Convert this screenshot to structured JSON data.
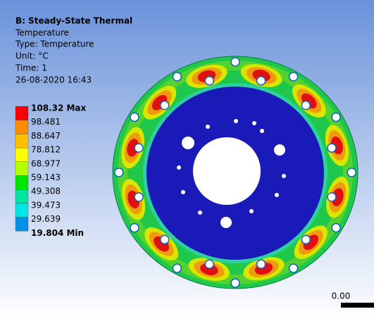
{
  "header": {
    "title": "B: Steady-State Thermal",
    "lines": [
      "Temperature",
      "Type: Temperature",
      "Unit: °C",
      "Time: 1",
      "26-08-2020 16:43"
    ]
  },
  "legend": {
    "labels": [
      "108.32 Max",
      "98.481",
      "88.647",
      "78.812",
      "68.977",
      "59.143",
      "49.308",
      "39.473",
      "29.639",
      "19.804 Min"
    ],
    "colors": [
      "#ff0000",
      "#ff8c00",
      "#ffbe00",
      "#ffff00",
      "#b4ff00",
      "#00e600",
      "#00e6a0",
      "#00e6e6",
      "#0090e6",
      "#0000f0"
    ]
  },
  "scale": {
    "label": "0.00"
  }
}
